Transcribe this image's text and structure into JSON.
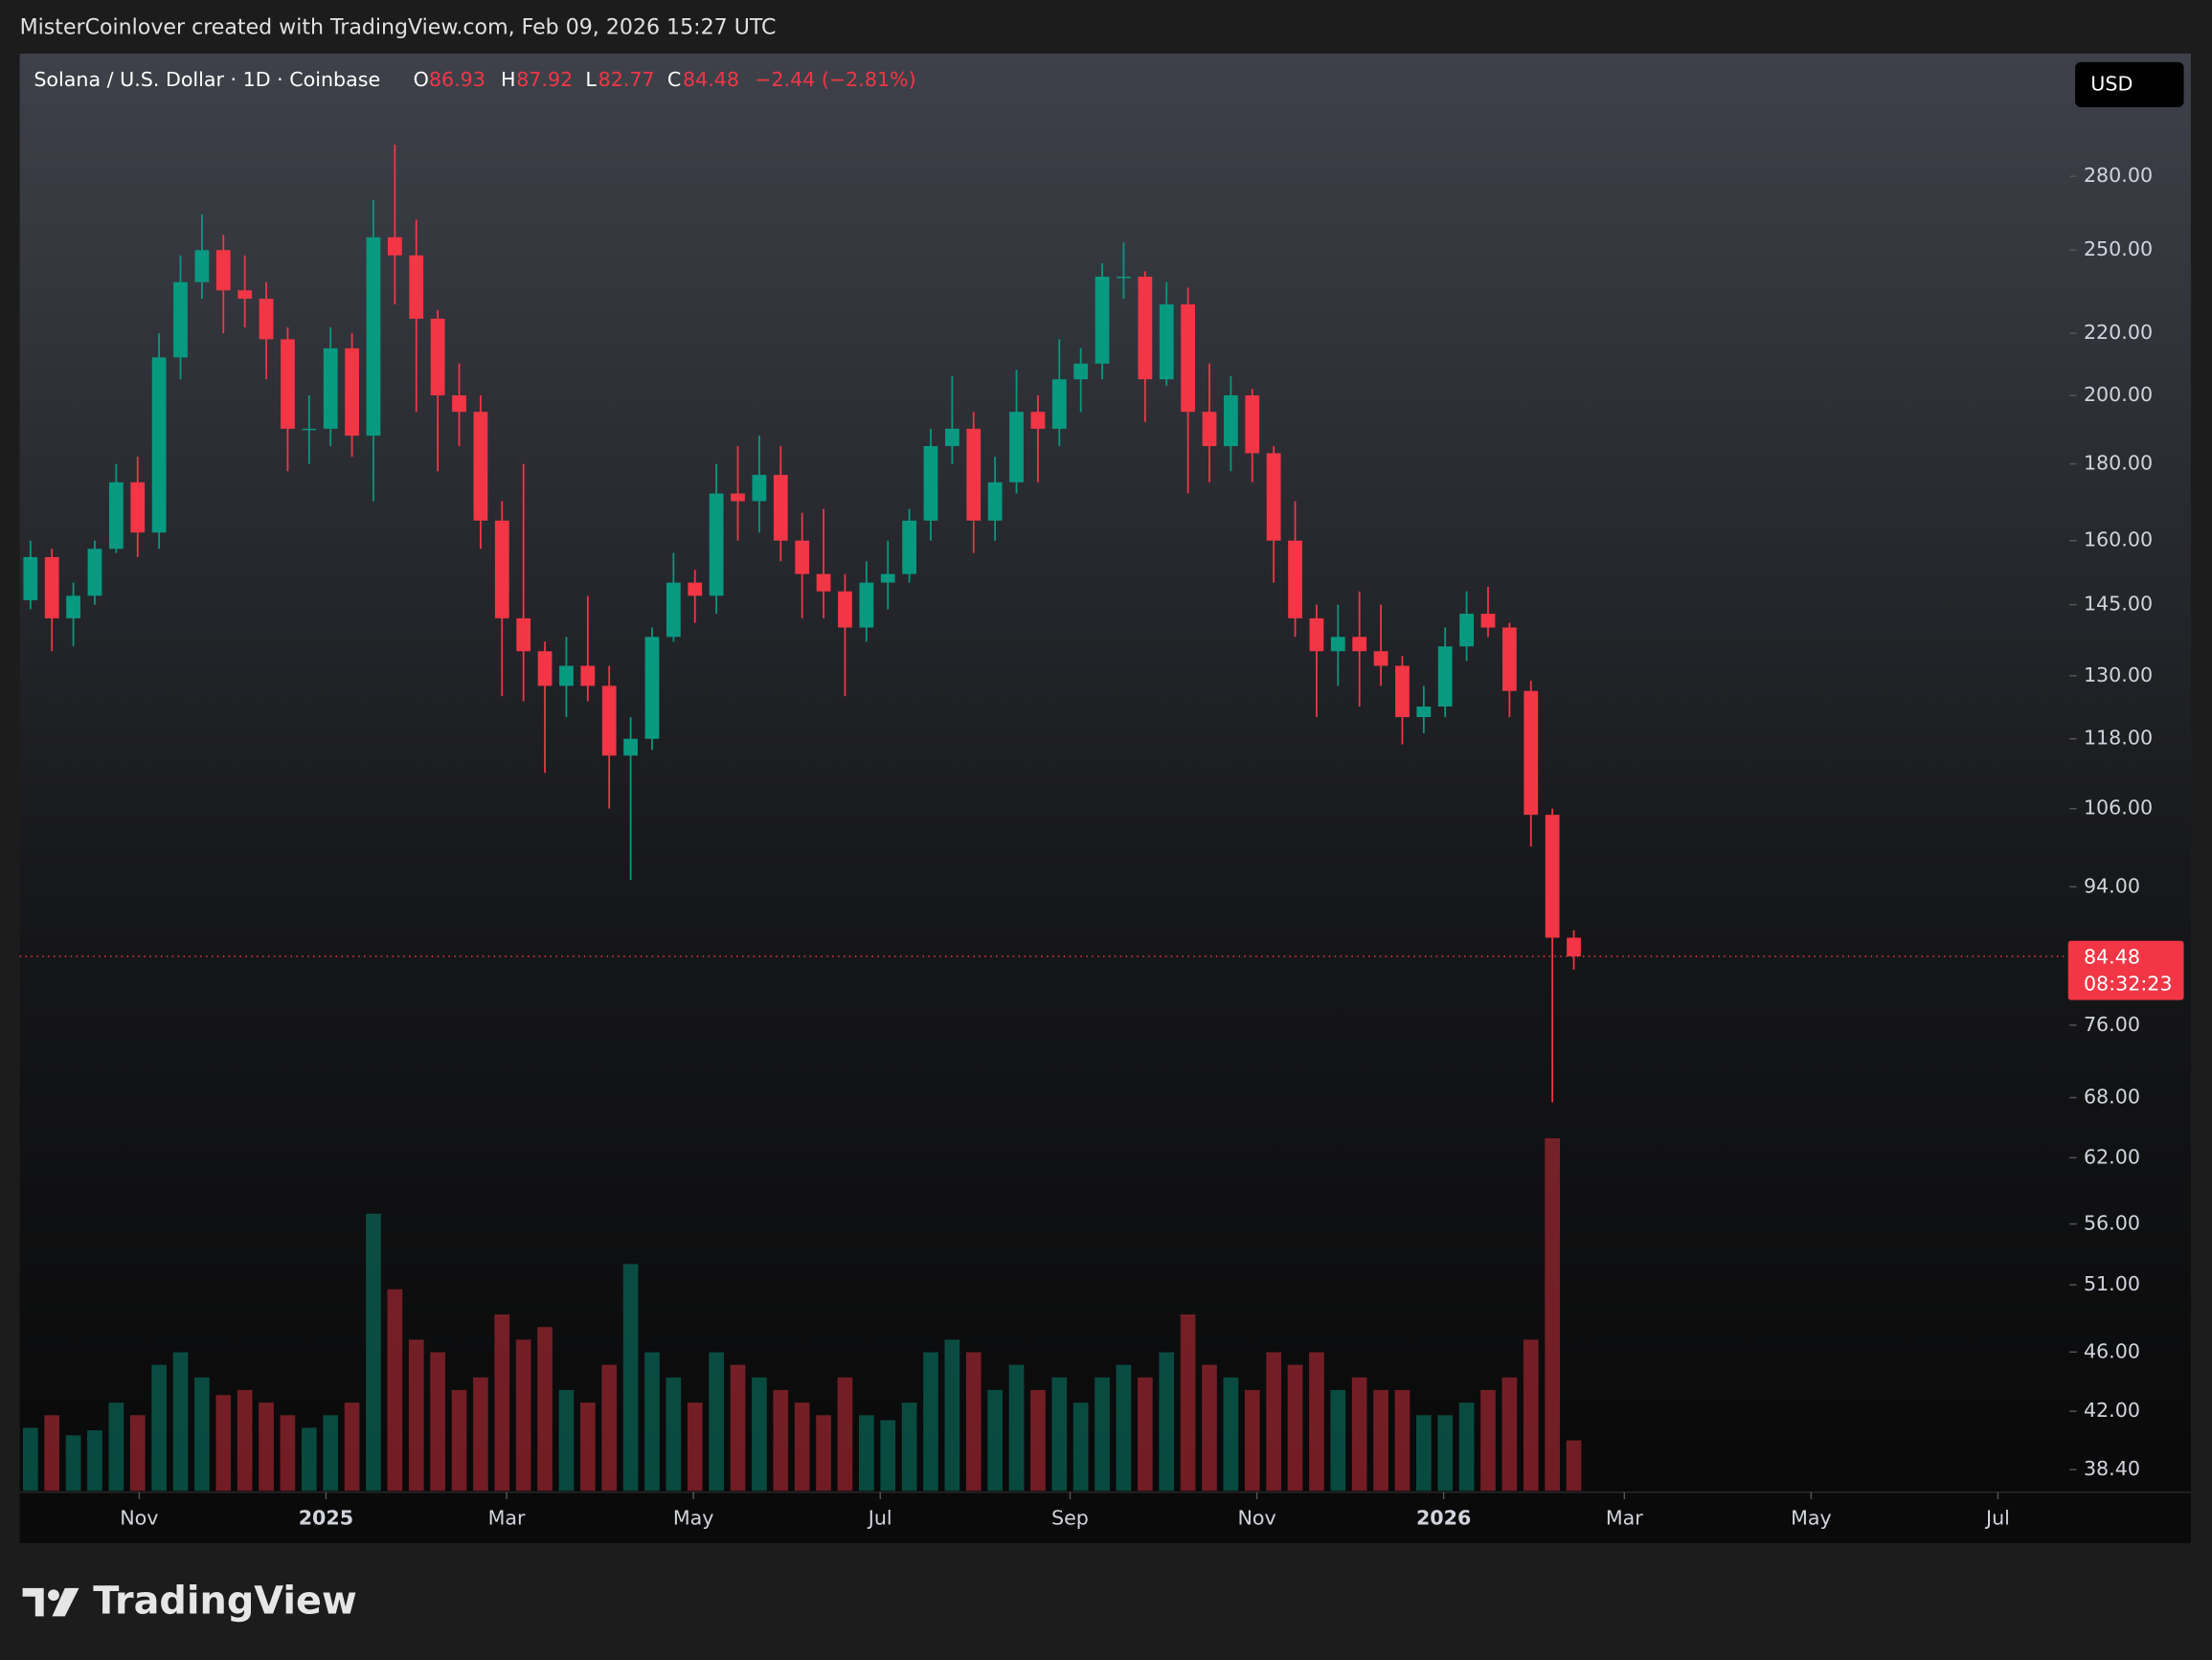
{
  "header": {
    "attribution": "MisterCoinlover created with TradingView.com, Feb 09, 2026 15:27 UTC"
  },
  "chart_data": {
    "type": "candlestick",
    "title": "Solana / U.S. Dollar · 1D · Coinbase",
    "currency": "USD",
    "ohlc_labels": [
      "O",
      "H",
      "L",
      "C"
    ],
    "change_label": "−2.44 (−2.81%)",
    "last_price_countdown": "08:32:23",
    "up_color": "#089981",
    "down_color": "#f23645",
    "log_scale": true,
    "x": [
      "2024-09-23",
      "2024-09-30",
      "2024-10-07",
      "2024-10-14",
      "2024-10-21",
      "2024-10-28",
      "2024-11-04",
      "2024-11-11",
      "2024-11-18",
      "2024-11-25",
      "2024-12-02",
      "2024-12-09",
      "2024-12-16",
      "2024-12-23",
      "2024-12-30",
      "2025-01-06",
      "2025-01-13",
      "2025-01-20",
      "2025-01-27",
      "2025-02-03",
      "2025-02-10",
      "2025-02-17",
      "2025-02-24",
      "2025-03-03",
      "2025-03-10",
      "2025-03-17",
      "2025-03-24",
      "2025-03-31",
      "2025-04-07",
      "2025-04-14",
      "2025-04-21",
      "2025-04-28",
      "2025-05-05",
      "2025-05-12",
      "2025-05-19",
      "2025-05-26",
      "2025-06-02",
      "2025-06-09",
      "2025-06-16",
      "2025-06-23",
      "2025-06-30",
      "2025-07-07",
      "2025-07-14",
      "2025-07-21",
      "2025-07-28",
      "2025-08-04",
      "2025-08-11",
      "2025-08-18",
      "2025-08-25",
      "2025-09-01",
      "2025-09-08",
      "2025-09-15",
      "2025-09-22",
      "2025-09-29",
      "2025-10-06",
      "2025-10-13",
      "2025-10-20",
      "2025-10-27",
      "2025-11-03",
      "2025-11-10",
      "2025-11-17",
      "2025-11-24",
      "2025-12-01",
      "2025-12-08",
      "2025-12-15",
      "2025-12-22",
      "2025-12-29",
      "2026-01-05",
      "2026-01-12",
      "2026-01-19",
      "2026-01-26",
      "2026-02-02",
      "2026-02-09"
    ],
    "open": [
      146,
      156,
      142,
      147,
      158,
      175,
      162,
      212,
      238,
      250,
      235,
      232,
      218,
      190,
      190,
      215,
      188,
      255,
      248,
      225,
      200,
      195,
      165,
      142,
      135,
      128,
      132,
      128,
      115,
      118,
      138,
      150,
      147,
      172,
      170,
      177,
      160,
      152,
      148,
      140,
      150,
      152,
      165,
      185,
      190,
      165,
      175,
      195,
      190,
      205,
      210,
      240,
      240,
      205,
      230,
      195,
      185,
      200,
      183,
      160,
      142,
      135,
      138,
      135,
      132,
      122,
      124,
      136,
      143,
      140,
      127,
      105,
      86.93
    ],
    "high": [
      160,
      158,
      150,
      160,
      180,
      182,
      220,
      248,
      264,
      256,
      248,
      238,
      222,
      200,
      222,
      220,
      270,
      294,
      262,
      228,
      210,
      200,
      170,
      180,
      137,
      138,
      147,
      132,
      122,
      140,
      157,
      153,
      180,
      185,
      188,
      185,
      167,
      168,
      152,
      155,
      160,
      168,
      190,
      206,
      195,
      182,
      208,
      200,
      218,
      215,
      245,
      253,
      242,
      238,
      236,
      210,
      206,
      202,
      185,
      170,
      145,
      145,
      148,
      145,
      134,
      128,
      140,
      148,
      149,
      141,
      129,
      106,
      87.92
    ],
    "low": [
      144,
      135,
      136,
      145,
      157,
      156,
      158,
      205,
      232,
      220,
      222,
      205,
      178,
      180,
      185,
      182,
      170,
      230,
      195,
      178,
      185,
      158,
      126,
      125,
      112,
      122,
      125,
      106,
      95,
      116,
      137,
      141,
      143,
      160,
      162,
      155,
      142,
      142,
      126,
      137,
      144,
      150,
      160,
      180,
      157,
      160,
      172,
      175,
      185,
      195,
      205,
      232,
      192,
      203,
      172,
      175,
      178,
      175,
      150,
      138,
      122,
      128,
      124,
      128,
      117,
      119,
      122,
      133,
      138,
      122,
      100,
      67.5,
      82.77
    ],
    "close": [
      156,
      142,
      147,
      158,
      175,
      162,
      212,
      238,
      250,
      235,
      232,
      218,
      190,
      190,
      215,
      188,
      255,
      248,
      225,
      200,
      195,
      165,
      142,
      135,
      128,
      132,
      128,
      115,
      118,
      138,
      150,
      147,
      172,
      170,
      177,
      160,
      152,
      148,
      140,
      150,
      152,
      165,
      185,
      190,
      165,
      175,
      195,
      190,
      205,
      210,
      240,
      240,
      205,
      230,
      195,
      185,
      200,
      183,
      160,
      142,
      135,
      138,
      135,
      132,
      122,
      124,
      136,
      143,
      140,
      127,
      105,
      86.93,
      84.48
    ],
    "volume": [
      25,
      30,
      22,
      24,
      35,
      30,
      50,
      55,
      45,
      38,
      40,
      35,
      30,
      25,
      30,
      35,
      110,
      80,
      60,
      55,
      40,
      45,
      70,
      60,
      65,
      40,
      35,
      50,
      90,
      55,
      45,
      35,
      55,
      50,
      45,
      40,
      35,
      30,
      45,
      30,
      28,
      35,
      55,
      60,
      55,
      40,
      50,
      40,
      45,
      35,
      45,
      50,
      45,
      55,
      70,
      50,
      45,
      40,
      55,
      50,
      55,
      40,
      45,
      40,
      40,
      30,
      30,
      35,
      40,
      45,
      60,
      140,
      20
    ],
    "ylim": [
      37.17,
      338.1
    ],
    "yticks": [
      {
        "value": 280,
        "label": "280.00"
      },
      {
        "value": 250,
        "label": "250.00"
      },
      {
        "value": 220,
        "label": "220.00"
      },
      {
        "value": 200,
        "label": "200.00"
      },
      {
        "value": 180,
        "label": "180.00"
      },
      {
        "value": 160,
        "label": "160.00"
      },
      {
        "value": 145,
        "label": "145.00"
      },
      {
        "value": 130,
        "label": "130.00"
      },
      {
        "value": 118,
        "label": "118.00"
      },
      {
        "value": 106,
        "label": "106.00"
      },
      {
        "value": 94,
        "label": "94.00"
      },
      {
        "value": 76,
        "label": "76.00"
      },
      {
        "value": 68,
        "label": "68.00"
      },
      {
        "value": 62,
        "label": "62.00"
      },
      {
        "value": 56,
        "label": "56.00"
      },
      {
        "value": 51,
        "label": "51.00"
      },
      {
        "value": 46,
        "label": "46.00"
      },
      {
        "value": 42,
        "label": "42.00"
      },
      {
        "value": 38.4,
        "label": "38.40"
      }
    ],
    "xlim": [
      "2024-09-23",
      "2026-09-02"
    ],
    "xticks": [
      {
        "value": "2024-11-01",
        "label": "Nov"
      },
      {
        "value": "2025-01-01",
        "label": "2025"
      },
      {
        "value": "2025-03-01",
        "label": "Mar"
      },
      {
        "value": "2025-05-01",
        "label": "May"
      },
      {
        "value": "2025-07-01",
        "label": "Jul"
      },
      {
        "value": "2025-09-01",
        "label": "Sep"
      },
      {
        "value": "2025-11-01",
        "label": "Nov"
      },
      {
        "value": "2026-01-01",
        "label": "2026"
      },
      {
        "value": "2026-03-01",
        "label": "Mar"
      },
      {
        "value": "2026-05-01",
        "label": "May"
      },
      {
        "value": "2026-07-01",
        "label": "Jul"
      }
    ]
  },
  "footer": {
    "logo": "TradingView"
  }
}
